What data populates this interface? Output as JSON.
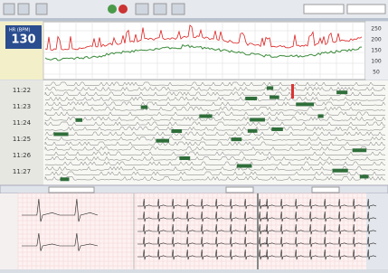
{
  "trend": {
    "label": "HR (BPM)",
    "value": "130",
    "scale": [
      "250",
      "200",
      "150",
      "100",
      "50"
    ]
  },
  "disclosure": {
    "times": [
      "11:22",
      "11:23",
      "11:24",
      "11:25",
      "11:26",
      "11:27"
    ]
  }
}
